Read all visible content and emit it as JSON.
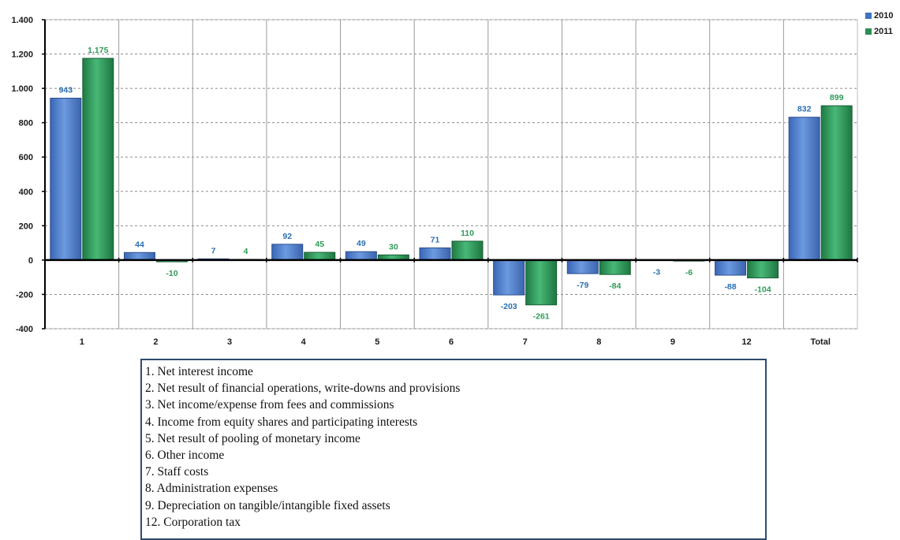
{
  "chart_data": {
    "type": "bar",
    "categories": [
      "1",
      "2",
      "3",
      "4",
      "5",
      "6",
      "7",
      "8",
      "9",
      "12",
      "Total"
    ],
    "series": [
      {
        "name": "2010",
        "color": "#4f7fd0",
        "values": [
          943,
          44,
          7,
          92,
          49,
          71,
          -203,
          -79,
          -3,
          -88,
          832
        ],
        "labels": [
          "943",
          "44",
          "7",
          "92",
          "49",
          "71",
          "-203",
          "-79",
          "-3",
          "-88",
          "832"
        ]
      },
      {
        "name": "2011",
        "color": "#2e9c5c",
        "values": [
          1175,
          -10,
          4,
          45,
          30,
          110,
          -261,
          -84,
          -6,
          -104,
          899
        ],
        "labels": [
          "1.175",
          "-10",
          "4",
          "45",
          "30",
          "110",
          "-261",
          "-84",
          "-6",
          "-104",
          "899"
        ]
      }
    ],
    "ylim": [
      -400,
      1400
    ],
    "yticks": [
      -400,
      -200,
      0,
      200,
      400,
      600,
      800,
      1000,
      1200,
      1400
    ],
    "ytick_labels": [
      "-400",
      "-200",
      "0",
      "200",
      "400",
      "600",
      "800",
      "1.000",
      "1.200",
      "1.400"
    ],
    "grid": true,
    "legend_position": "top-right",
    "label_colors": {
      "2010": "#2a6fb3",
      "2011": "#2e9a58"
    }
  },
  "notes": [
    "1. Net interest income",
    "2. Net result of financial operations, write-downs and provisions",
    "3. Net income/expense from fees and commissions",
    "4. Income from equity shares and participating interests",
    "5. Net result of pooling of monetary income",
    "6. Other income",
    "7. Staff costs",
    "8. Administration expenses",
    "9. Depreciation on tangible/intangible fixed assets",
    "12. Corporation tax"
  ]
}
